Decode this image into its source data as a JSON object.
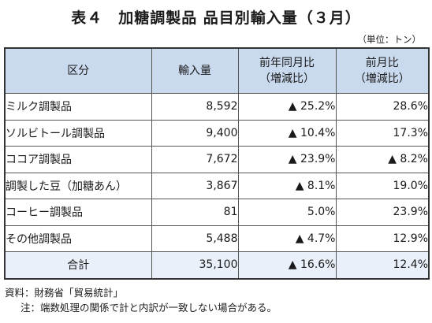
{
  "title": "表４　加糖調製品 品目別輸入量（３月）",
  "unit": "（単位：トン）",
  "headers": {
    "category": "区分",
    "import": "輸入量",
    "yoy": [
      "前年同月比",
      "（増減比）"
    ],
    "mom": [
      "前月比",
      "（増減比）"
    ]
  },
  "rows": [
    {
      "name": "ミルク調製品",
      "import": "8,592",
      "yoy": "▲ 25.2%",
      "mom": "28.6%"
    },
    {
      "name": "ソルビトール調製品",
      "import": "9,400",
      "yoy": "▲ 10.4%",
      "mom": "17.3%"
    },
    {
      "name": "ココア調製品",
      "import": "7,672",
      "yoy": "▲ 23.9%",
      "mom": "▲ 8.2%"
    },
    {
      "name": "調製した豆（加糖あん）",
      "import": "3,867",
      "yoy": "▲ 8.1%",
      "mom": "19.0%"
    },
    {
      "name": "コーヒー調製品",
      "import": "81",
      "yoy": "5.0%",
      "mom": "23.9%"
    },
    {
      "name": "その他調製品",
      "import": "5,488",
      "yoy": "▲ 4.7%",
      "mom": "12.9%"
    }
  ],
  "total": {
    "name": "合計",
    "import": "35,100",
    "yoy": "▲ 16.6%",
    "mom": "12.4%"
  },
  "notes": {
    "source": "資料：財務省「貿易統計」",
    "note": "注：端数処理の関係で計と内訳が一致しない場合がある。"
  }
}
